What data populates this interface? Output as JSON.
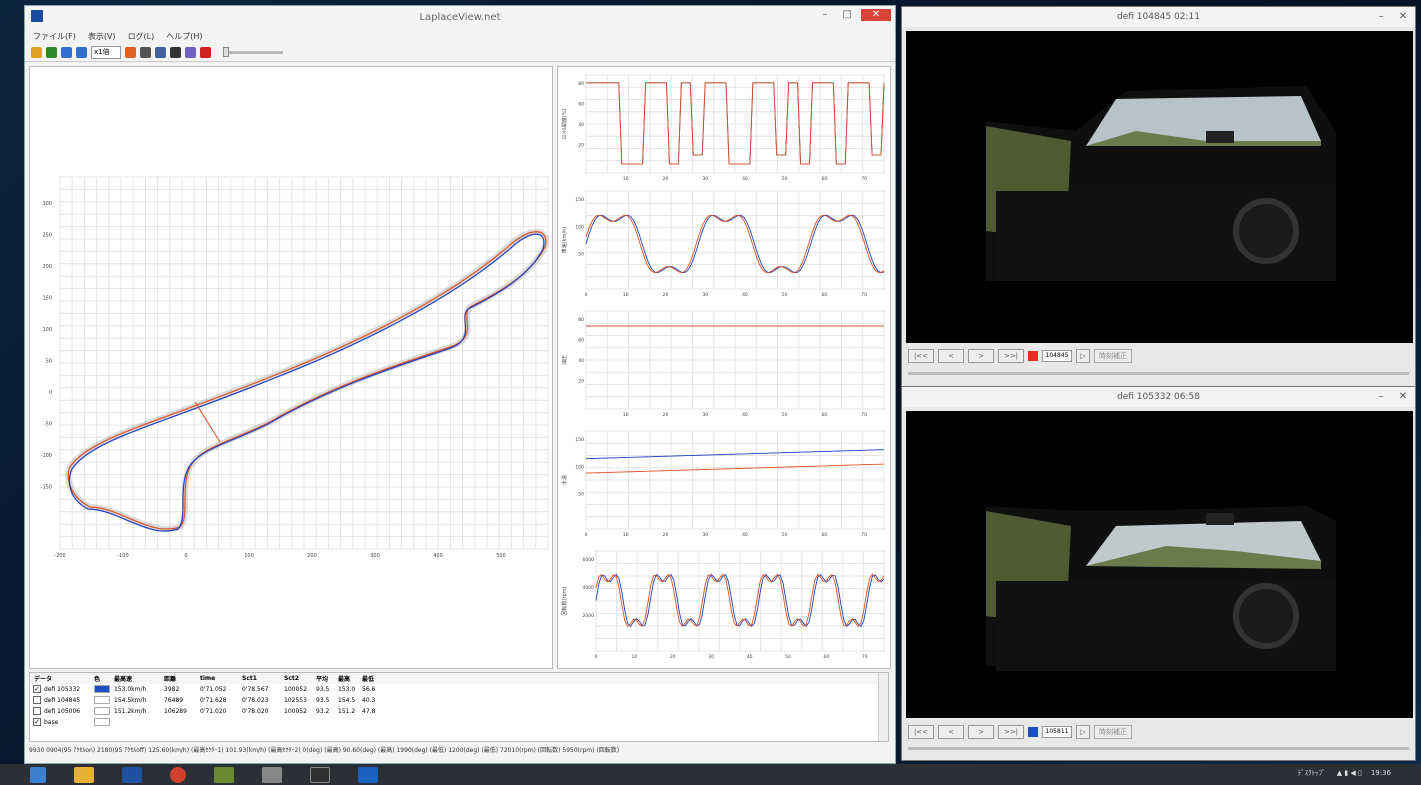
{
  "app": {
    "title": "LaplaceView.net"
  },
  "menu": [
    "ファイル(F)",
    "表示(V)",
    "ログ(L)",
    "ヘルプ(H)"
  ],
  "toolbar": {
    "speed": "x1倍"
  },
  "track_map": {
    "y_ticks": [
      "300",
      "250",
      "200",
      "150",
      "100",
      "50",
      "0",
      "-50",
      "-100",
      "-150"
    ],
    "x_ticks": [
      "-200",
      "-100",
      "0",
      "100",
      "200",
      "300",
      "400",
      "500"
    ]
  },
  "charts": [
    {
      "ylabel": "ｽﾛｯﾄﾙ開度(%)",
      "y_ticks": [
        "80",
        "60",
        "40",
        "20"
      ],
      "x_ticks": [
        "10",
        "20",
        "30",
        "40",
        "50",
        "60",
        "70"
      ]
    },
    {
      "ylabel": "車速(km/h)",
      "y_ticks": [
        "150",
        "100",
        "50"
      ],
      "x_ticks": [
        "0",
        "10",
        "20",
        "30",
        "40",
        "50",
        "60",
        "70"
      ]
    },
    {
      "ylabel": "油圧",
      "y_ticks": [
        "80",
        "60",
        "40",
        "20"
      ],
      "x_ticks": [
        "10",
        "20",
        "30",
        "40",
        "50",
        "60",
        "70"
      ]
    },
    {
      "ylabel": "水温",
      "y_ticks": [
        "150",
        "100",
        "50"
      ],
      "x_ticks": [
        "0",
        "10",
        "20",
        "30",
        "40",
        "50",
        "60",
        "70"
      ]
    },
    {
      "ylabel": "回転数(rpm)",
      "y_ticks": [
        "6000",
        "4000",
        "2000"
      ],
      "x_ticks": [
        "0",
        "10",
        "20",
        "30",
        "40",
        "50",
        "60",
        "70"
      ]
    }
  ],
  "table": {
    "headers": [
      "データ",
      "色",
      "最高速",
      "距離",
      "time",
      "Sct1",
      "Sct2",
      "平均",
      "最高",
      "最低"
    ],
    "rows": [
      {
        "name": "defi 105332",
        "speed": "153.0km/h",
        "dist": "3982",
        "time": "0'71.052",
        "s1": "0'78.567",
        "s2": "100052",
        "a": "93.5",
        "b": "153.0",
        "c": "56.6",
        "checked": "✓",
        "color": "#1a50c0"
      },
      {
        "name": "defi 104845",
        "speed": "154.5km/h",
        "dist": "76489",
        "time": "0'71.628",
        "s1": "0'78.023",
        "s2": "102553",
        "a": "93.5",
        "b": "154.5",
        "c": "40.3",
        "checked": "",
        "color": "#ffffff"
      },
      {
        "name": "defi 105006",
        "speed": "151.2km/h",
        "dist": "106289",
        "time": "0'71.020",
        "s1": "0'78.020",
        "s2": "100052",
        "a": "93.2",
        "b": "151.2",
        "c": "47.8",
        "checked": "",
        "color": "#ffffff"
      },
      {
        "name": "base",
        "speed": "",
        "dist": "",
        "time": "",
        "s1": "",
        "s2": "",
        "a": "",
        "b": "",
        "c": "",
        "checked": "✓",
        "color": "#ffffff"
      }
    ]
  },
  "status": "9930 0904(95 ｱｸｾﾙon) 2180(95 ｱｸｾﾙoff)  125.60(km/h) (最高ｾｸﾀｰ1)  101.93(km/h) (最高ｾｸﾀｰ2)  0(deg) (最高)  90.60(deg) (最高)  1990(deg) (最低)  1200(deg) (最低)  72010(rpm) (回転数)  5950(rpm) (回転数)",
  "video_top": {
    "title": "defi 104845 02:11",
    "time": "104845"
  },
  "video_bottom": {
    "title": "defi 105332 06:58",
    "time": "105811"
  },
  "video_controls": {
    "first": "|<<",
    "prev": "<",
    "next": ">",
    "last": ">>|",
    "sync": "時刻補正"
  },
  "tray": {
    "lang": "ﾃﾞｽｸﾄｯﾌﾟ",
    "time": "19:36"
  }
}
